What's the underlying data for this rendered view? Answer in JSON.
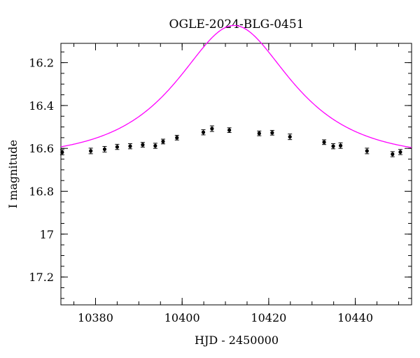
{
  "chart_data": {
    "type": "scatter",
    "title": "OGLE-2024-BLG-0451",
    "xlabel": "HJD - 2450000",
    "ylabel": "I magnitude",
    "xlim": [
      10372,
      10453
    ],
    "ylim": [
      17.33,
      16.11
    ],
    "y_inverted": true,
    "x_major_ticks": [
      10380,
      10400,
      10420,
      10440
    ],
    "x_tick_labels": [
      "10380",
      "10400",
      "10420",
      "10440"
    ],
    "x_minor_step": 5,
    "y_major_ticks": [
      16.2,
      16.4,
      16.6,
      16.8,
      17,
      17.2
    ],
    "y_tick_labels": [
      "16.2",
      "16.4",
      "16.6",
      "16.8",
      "17",
      "17.2"
    ],
    "y_minor_step": 0.05,
    "grid": false,
    "series": [
      {
        "name": "observations",
        "kind": "points_with_errorbars",
        "color": "#000000",
        "points": [
          {
            "x": 10372.3,
            "y": 16.618,
            "err": 0.012
          },
          {
            "x": 10378.9,
            "y": 16.612,
            "err": 0.013
          },
          {
            "x": 10382.1,
            "y": 16.604,
            "err": 0.013
          },
          {
            "x": 10385.0,
            "y": 16.593,
            "err": 0.012
          },
          {
            "x": 10388.0,
            "y": 16.59,
            "err": 0.012
          },
          {
            "x": 10390.9,
            "y": 16.583,
            "err": 0.011
          },
          {
            "x": 10393.8,
            "y": 16.588,
            "err": 0.012
          },
          {
            "x": 10395.6,
            "y": 16.568,
            "err": 0.011
          },
          {
            "x": 10398.8,
            "y": 16.55,
            "err": 0.011
          },
          {
            "x": 10404.9,
            "y": 16.525,
            "err": 0.012
          },
          {
            "x": 10406.9,
            "y": 16.508,
            "err": 0.013
          },
          {
            "x": 10410.9,
            "y": 16.515,
            "err": 0.011
          },
          {
            "x": 10417.8,
            "y": 16.53,
            "err": 0.011
          },
          {
            "x": 10420.8,
            "y": 16.527,
            "err": 0.011
          },
          {
            "x": 10424.9,
            "y": 16.546,
            "err": 0.013
          },
          {
            "x": 10432.8,
            "y": 16.571,
            "err": 0.011
          },
          {
            "x": 10434.9,
            "y": 16.59,
            "err": 0.012
          },
          {
            "x": 10436.6,
            "y": 16.587,
            "err": 0.013
          },
          {
            "x": 10442.7,
            "y": 16.612,
            "err": 0.013
          },
          {
            "x": 10448.6,
            "y": 16.627,
            "err": 0.012
          },
          {
            "x": 10450.4,
            "y": 16.617,
            "err": 0.012
          }
        ]
      },
      {
        "name": "model",
        "kind": "line",
        "color": "#ff00ff",
        "model": {
          "t0": 10412.0,
          "tE": 20.0,
          "u0": 0.65,
          "base_mag": 16.648
        }
      }
    ]
  }
}
